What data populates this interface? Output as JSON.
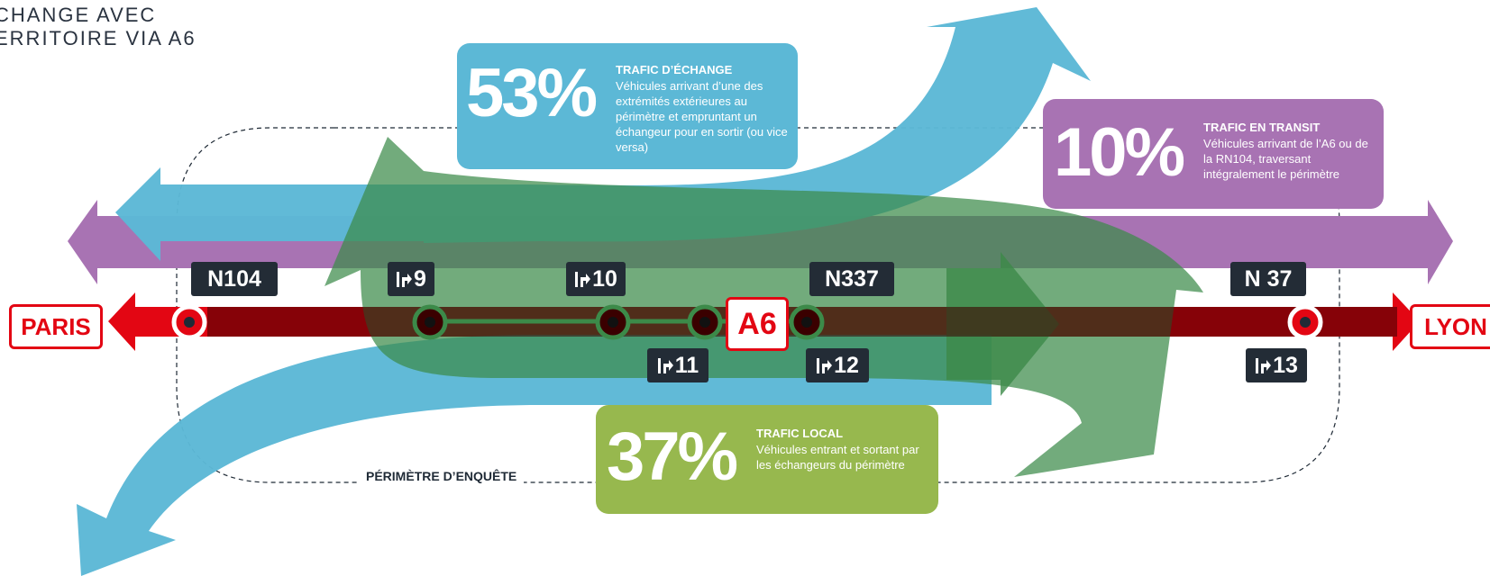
{
  "corner_title": {
    "line1": "CHANGE AVEC",
    "line2": "ERRITOIRE VIA A6"
  },
  "cities": {
    "left": "PARIS",
    "right": "LYON"
  },
  "highway": "A6",
  "road_labels_top": {
    "n104": "N104",
    "exit9": "9",
    "exit10": "10",
    "n337": "N337",
    "n37": "N 37"
  },
  "road_labels_bottom": {
    "exit11": "11",
    "exit12": "12",
    "exit13": "13"
  },
  "boxes": {
    "exchange": {
      "percent": "53%",
      "title": "TRAFIC D’ÉCHANGE",
      "description": "Véhicules arrivant d’une des extrémités extérieures au périmètre et empruntant un échangeur pour en sortir (ou vice versa)"
    },
    "transit": {
      "percent": "10%",
      "title": "TRAFIC EN TRANSIT",
      "description": "Véhicules arrivant de l’A6 ou de la RN104, traversant intégralement le périmètre"
    },
    "local": {
      "percent": "37%",
      "title": "TRAFIC LOCAL",
      "description": "Véhicules entrant et sortant par les échangeurs du périmètre"
    }
  },
  "perimeter_label": "PÉRIMÈTRE D’ENQUÊTE",
  "colors": {
    "exchange_blue": "#5cb8d6",
    "transit_purple": "#a873b3",
    "local_green": "#97b84e",
    "highway_red": "#e30613",
    "label_dark": "#232c36"
  }
}
